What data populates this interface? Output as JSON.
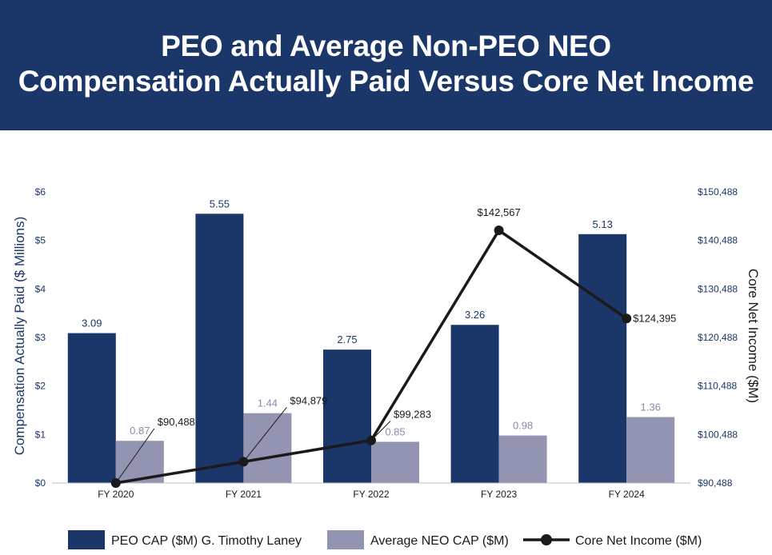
{
  "header": {
    "title_line1": "PEO and Average Non-PEO NEO",
    "title_line2": "Compensation Actually Paid Versus Core Net Income"
  },
  "chart_data": {
    "type": "bar",
    "categories": [
      "FY 2020",
      "FY 2021",
      "FY 2022",
      "FY 2023",
      "FY 2024"
    ],
    "series": [
      {
        "name": "PEO CAP ($M) G. Timothy Laney",
        "type": "bar",
        "axis": "left",
        "values": [
          3.09,
          5.55,
          2.75,
          3.26,
          5.13
        ],
        "labels": [
          "3.09",
          "5.55",
          "2.75",
          "3.26",
          "5.13"
        ],
        "color": "#1b3668"
      },
      {
        "name": "Average NEO CAP ($M)",
        "type": "bar",
        "axis": "left",
        "values": [
          0.87,
          1.44,
          0.85,
          0.98,
          1.36
        ],
        "labels": [
          "0.87",
          "1.44",
          "0.85",
          "0.98",
          "1.36"
        ],
        "color": "#9394b1"
      },
      {
        "name": "Core Net Income ($M)",
        "type": "line",
        "axis": "right",
        "values": [
          90488,
          94879,
          99283,
          142567,
          124395
        ],
        "labels": [
          "$90,488",
          "$94,879",
          "$99,283",
          "$142,567",
          "$124,395"
        ],
        "color": "#1a1a1a"
      }
    ],
    "ylabel": "Compensation Actually Paid ($ Millions)",
    "y2label": "Core Net Income ($M)",
    "ylim": [
      0,
      6
    ],
    "y2lim": [
      90488,
      150488
    ],
    "yticks": [
      "$0",
      "$1",
      "$2",
      "$3",
      "$4",
      "$5",
      "$6"
    ],
    "y2ticks": [
      "$90,488",
      "$100,488",
      "$110,488",
      "$120,488",
      "$130,488",
      "$140,488",
      "$150,488"
    ],
    "legend": "bottom",
    "grid": false
  },
  "colors": {
    "header_bg": "#1b3668",
    "axis_text": "#1b3668",
    "neo_label": "#8a8ba8"
  }
}
